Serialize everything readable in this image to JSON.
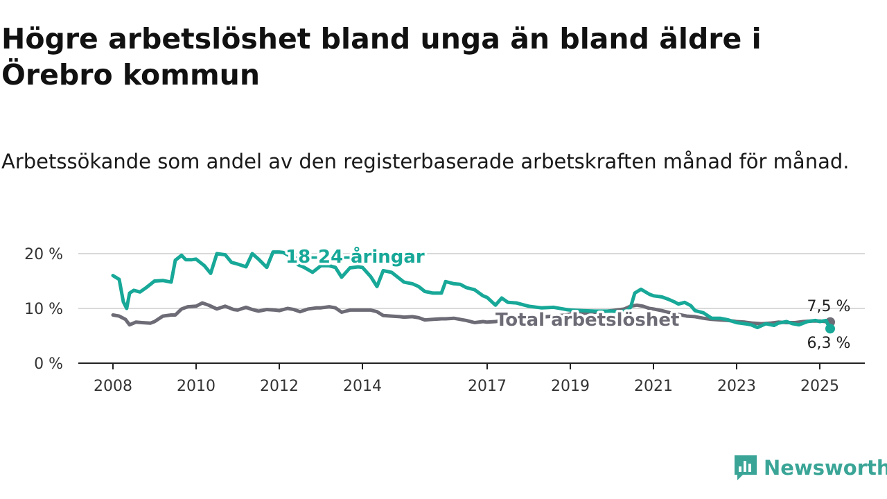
{
  "title": "Högre arbetslöshet bland unga än bland äldre i Örebro kommun",
  "subtitle": "Arbetssökande som andel av den registerbaserade arbetskraften månad för månad.",
  "brand": {
    "name": "Newsworthy",
    "icon": "newsworthy-logo-icon",
    "color": "#3aa597"
  },
  "colors": {
    "youth": "#17a898",
    "total": "#6d6b75",
    "axis": "#222222",
    "grid": "#d9d9d9"
  },
  "chart_data": {
    "type": "line",
    "ylim": [
      0,
      20
    ],
    "xlim": [
      2008,
      2025.6
    ],
    "grid": "horizontal",
    "y_ticks": [
      0,
      10,
      20
    ],
    "y_tick_labels": [
      "0 %",
      "10 %",
      "20 %"
    ],
    "x_ticks": [
      2008,
      2010,
      2012,
      2014,
      2017,
      2019,
      2021,
      2023,
      2025
    ],
    "x_tick_labels": [
      "2008",
      "2010",
      "2012",
      "2014",
      "2017",
      "2019",
      "2021",
      "2023",
      "2025"
    ],
    "series": [
      {
        "name": "18-24-åringar",
        "color": "#17a898",
        "end_label": "6,3 %",
        "x": [
          2008.0,
          2008.15,
          2008.25,
          2008.33,
          2008.4,
          2008.5,
          2008.65,
          2008.8,
          2009.0,
          2009.2,
          2009.4,
          2009.5,
          2009.65,
          2009.75,
          2009.9,
          2010.0,
          2010.2,
          2010.35,
          2010.5,
          2010.7,
          2010.85,
          2011.0,
          2011.2,
          2011.35,
          2011.5,
          2011.7,
          2011.85,
          2012.0,
          2012.1,
          2012.25,
          2012.35,
          2012.45,
          2012.6,
          2012.8,
          2013.0,
          2013.2,
          2013.35,
          2013.5,
          2013.7,
          2013.9,
          2014.0,
          2014.2,
          2014.35,
          2014.5,
          2014.7,
          2014.9,
          2015.0,
          2015.2,
          2015.35,
          2015.5,
          2015.7,
          2015.9,
          2016.0,
          2016.2,
          2016.35,
          2016.5,
          2016.7,
          2016.9,
          2017.0,
          2017.2,
          2017.35,
          2017.5,
          2017.7,
          2017.9,
          2018.0,
          2018.3,
          2018.6,
          2018.9,
          2019.0,
          2019.3,
          2019.6,
          2019.9,
          2020.0,
          2020.2,
          2020.35,
          2020.45,
          2020.55,
          2020.7,
          2020.9,
          2021.0,
          2021.2,
          2021.35,
          2021.5,
          2021.6,
          2021.75,
          2021.9,
          2022.0,
          2022.2,
          2022.4,
          2022.6,
          2022.8,
          2023.0,
          2023.2,
          2023.35,
          2023.5,
          2023.7,
          2023.9,
          2024.0,
          2024.2,
          2024.35,
          2024.5,
          2024.7,
          2024.9,
          2025.0,
          2025.15,
          2025.25
        ],
        "values": [
          16.0,
          15.3,
          11.2,
          10.0,
          12.8,
          13.3,
          13.0,
          13.8,
          15.0,
          15.1,
          14.8,
          18.8,
          19.7,
          18.9,
          18.9,
          19.0,
          17.8,
          16.4,
          20.0,
          19.8,
          18.4,
          18.1,
          17.6,
          20.0,
          19.0,
          17.5,
          20.3,
          20.3,
          20.2,
          19.6,
          19.9,
          18.0,
          17.5,
          16.6,
          17.8,
          17.8,
          17.5,
          15.7,
          17.4,
          17.6,
          17.5,
          15.8,
          14.0,
          16.9,
          16.6,
          15.4,
          14.8,
          14.5,
          14.0,
          13.1,
          12.8,
          12.8,
          14.9,
          14.5,
          14.4,
          13.8,
          13.4,
          12.3,
          12.0,
          10.6,
          11.9,
          11.1,
          11.0,
          10.6,
          10.4,
          10.1,
          10.2,
          9.8,
          9.7,
          9.6,
          9.5,
          9.5,
          9.5,
          9.4,
          9.6,
          10.2,
          12.8,
          13.5,
          12.6,
          12.3,
          12.1,
          11.7,
          11.2,
          10.8,
          11.1,
          10.5,
          9.6,
          9.2,
          8.2,
          8.2,
          7.9,
          7.4,
          7.2,
          7.0,
          6.5,
          7.2,
          6.9,
          7.3,
          7.6,
          7.2,
          7.0,
          7.6,
          7.8,
          7.6,
          7.8,
          6.3
        ]
      },
      {
        "name": "Total arbetslöshet",
        "color": "#6d6b75",
        "end_label": "7,5 %",
        "x": [
          2008.0,
          2008.15,
          2008.3,
          2008.4,
          2008.55,
          2008.7,
          2008.9,
          2009.0,
          2009.2,
          2009.4,
          2009.5,
          2009.65,
          2009.8,
          2010.0,
          2010.15,
          2010.3,
          2010.5,
          2010.7,
          2010.9,
          2011.0,
          2011.2,
          2011.35,
          2011.5,
          2011.7,
          2011.9,
          2012.0,
          2012.2,
          2012.35,
          2012.5,
          2012.7,
          2012.9,
          2013.0,
          2013.2,
          2013.35,
          2013.5,
          2013.7,
          2013.9,
          2014.0,
          2014.2,
          2014.35,
          2014.5,
          2014.7,
          2014.9,
          2015.0,
          2015.2,
          2015.35,
          2015.5,
          2015.7,
          2015.9,
          2016.0,
          2016.2,
          2016.35,
          2016.5,
          2016.7,
          2016.9,
          2017.0,
          2017.2,
          2017.4,
          2017.7,
          2018.0,
          2018.3,
          2018.6,
          2018.9,
          2019.0,
          2019.3,
          2019.6,
          2019.9,
          2020.0,
          2020.3,
          2020.45,
          2020.6,
          2020.75,
          2020.9,
          2021.0,
          2021.2,
          2021.4,
          2021.6,
          2021.8,
          2022.0,
          2022.2,
          2022.4,
          2022.6,
          2022.8,
          2023.0,
          2023.2,
          2023.4,
          2023.6,
          2023.8,
          2024.0,
          2024.2,
          2024.4,
          2024.6,
          2024.8,
          2025.0,
          2025.25
        ],
        "values": [
          8.8,
          8.6,
          8.0,
          7.0,
          7.5,
          7.4,
          7.3,
          7.6,
          8.6,
          8.8,
          8.8,
          9.9,
          10.3,
          10.4,
          11.0,
          10.6,
          9.9,
          10.4,
          9.8,
          9.7,
          10.2,
          9.8,
          9.5,
          9.8,
          9.7,
          9.6,
          10.0,
          9.8,
          9.4,
          9.9,
          10.1,
          10.1,
          10.3,
          10.1,
          9.3,
          9.7,
          9.7,
          9.7,
          9.7,
          9.4,
          8.7,
          8.6,
          8.5,
          8.4,
          8.5,
          8.3,
          7.9,
          8.0,
          8.1,
          8.1,
          8.2,
          8.0,
          7.8,
          7.4,
          7.6,
          7.5,
          7.6,
          7.8,
          8.0,
          8.3,
          8.4,
          8.6,
          8.8,
          9.0,
          9.1,
          9.3,
          9.5,
          9.6,
          9.9,
          10.4,
          10.6,
          10.4,
          10.0,
          9.9,
          9.6,
          9.2,
          8.9,
          8.6,
          8.5,
          8.2,
          8.0,
          7.9,
          7.8,
          7.6,
          7.5,
          7.3,
          7.2,
          7.3,
          7.5,
          7.4,
          7.4,
          7.6,
          7.7,
          7.7,
          7.5
        ]
      }
    ]
  }
}
